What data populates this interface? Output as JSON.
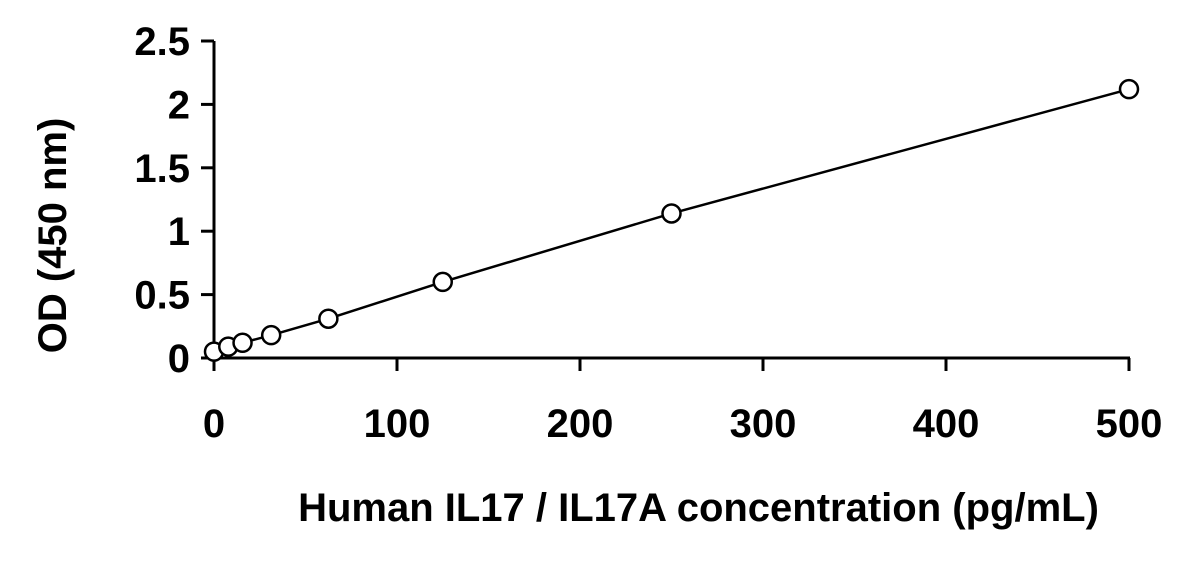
{
  "chart_data": {
    "type": "scatter",
    "title": "",
    "xlabel": "Human IL17 / IL17A concentration (pg/mL)",
    "ylabel": "OD (450 nm)",
    "xlim": [
      0,
      500
    ],
    "ylim": [
      0,
      2.5
    ],
    "xticks": [
      0,
      100,
      200,
      300,
      400,
      500
    ],
    "xtick_labels": [
      "0",
      "100",
      "200",
      "300",
      "400",
      "500"
    ],
    "yticks": [
      0,
      0.5,
      1,
      1.5,
      2,
      2.5
    ],
    "ytick_labels": [
      "0",
      "0.5",
      "1",
      "1.5",
      "2",
      "2.5"
    ],
    "grid": false,
    "legend": "none",
    "marker": "open-circle",
    "trendline": "smooth-line",
    "color": "#000000",
    "series": [
      {
        "x": [
          0,
          7.8,
          15.6,
          31.25,
          62.5,
          125,
          250,
          500
        ],
        "y": [
          0.05,
          0.09,
          0.12,
          0.18,
          0.31,
          0.6,
          1.14,
          2.12
        ]
      }
    ]
  }
}
